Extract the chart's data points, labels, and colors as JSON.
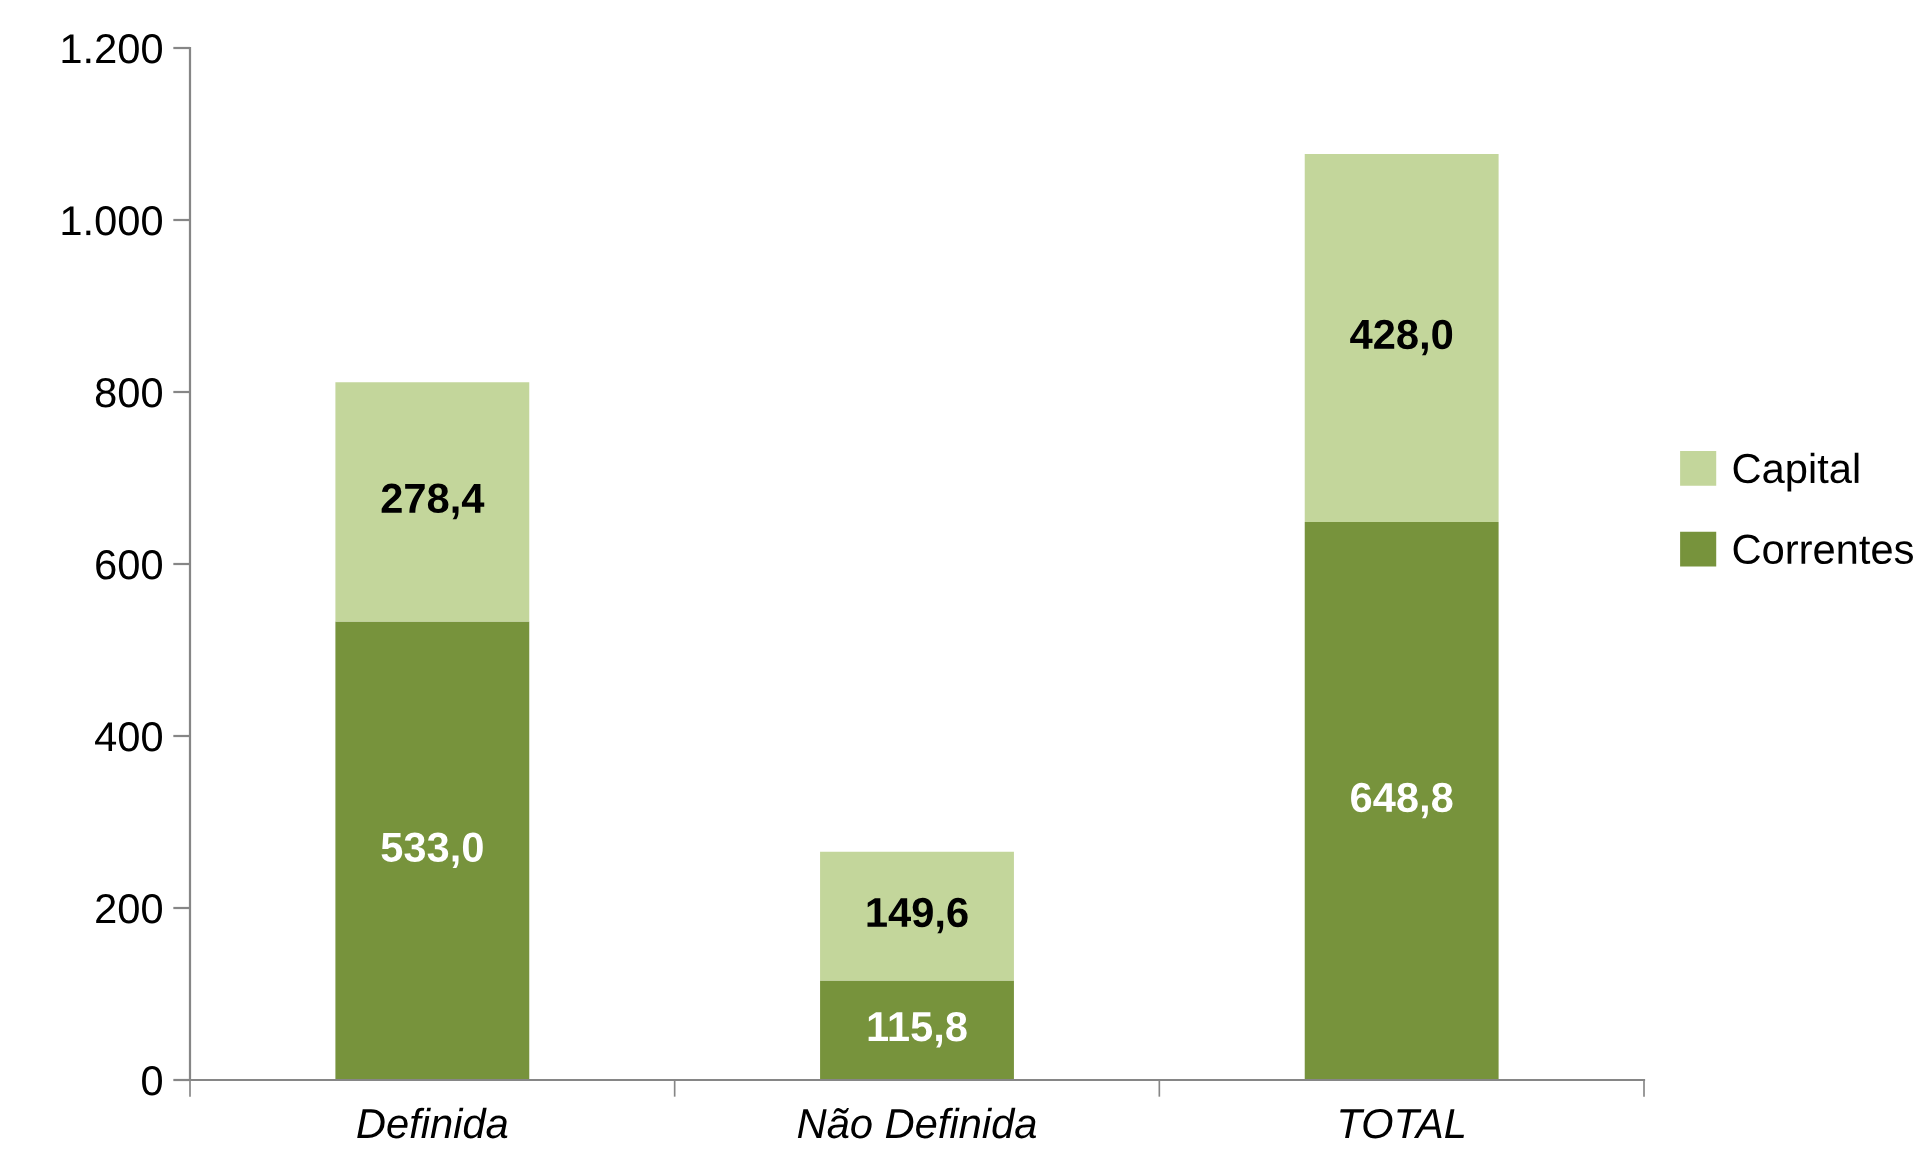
{
  "chart_data": {
    "type": "bar",
    "stacked": true,
    "categories": [
      "Definida",
      "Não Definida",
      "TOTAL"
    ],
    "series": [
      {
        "name": "Correntes",
        "color": "#77933c",
        "values": [
          533.0,
          115.8,
          648.8
        ],
        "value_labels": [
          "533,0",
          "115,8",
          "648,8"
        ]
      },
      {
        "name": "Capital",
        "color": "#c3d69b",
        "values": [
          278.4,
          149.6,
          428.0
        ],
        "value_labels": [
          "278,4",
          "149,6",
          "428,0"
        ]
      }
    ],
    "ylim": [
      0,
      1200
    ],
    "yticks": [
      0,
      200,
      400,
      600,
      800,
      {
        "value": 1000,
        "label": "1.000"
      },
      {
        "value": 1200,
        "label": "1.200"
      }
    ],
    "grid": false,
    "legend": "right"
  }
}
